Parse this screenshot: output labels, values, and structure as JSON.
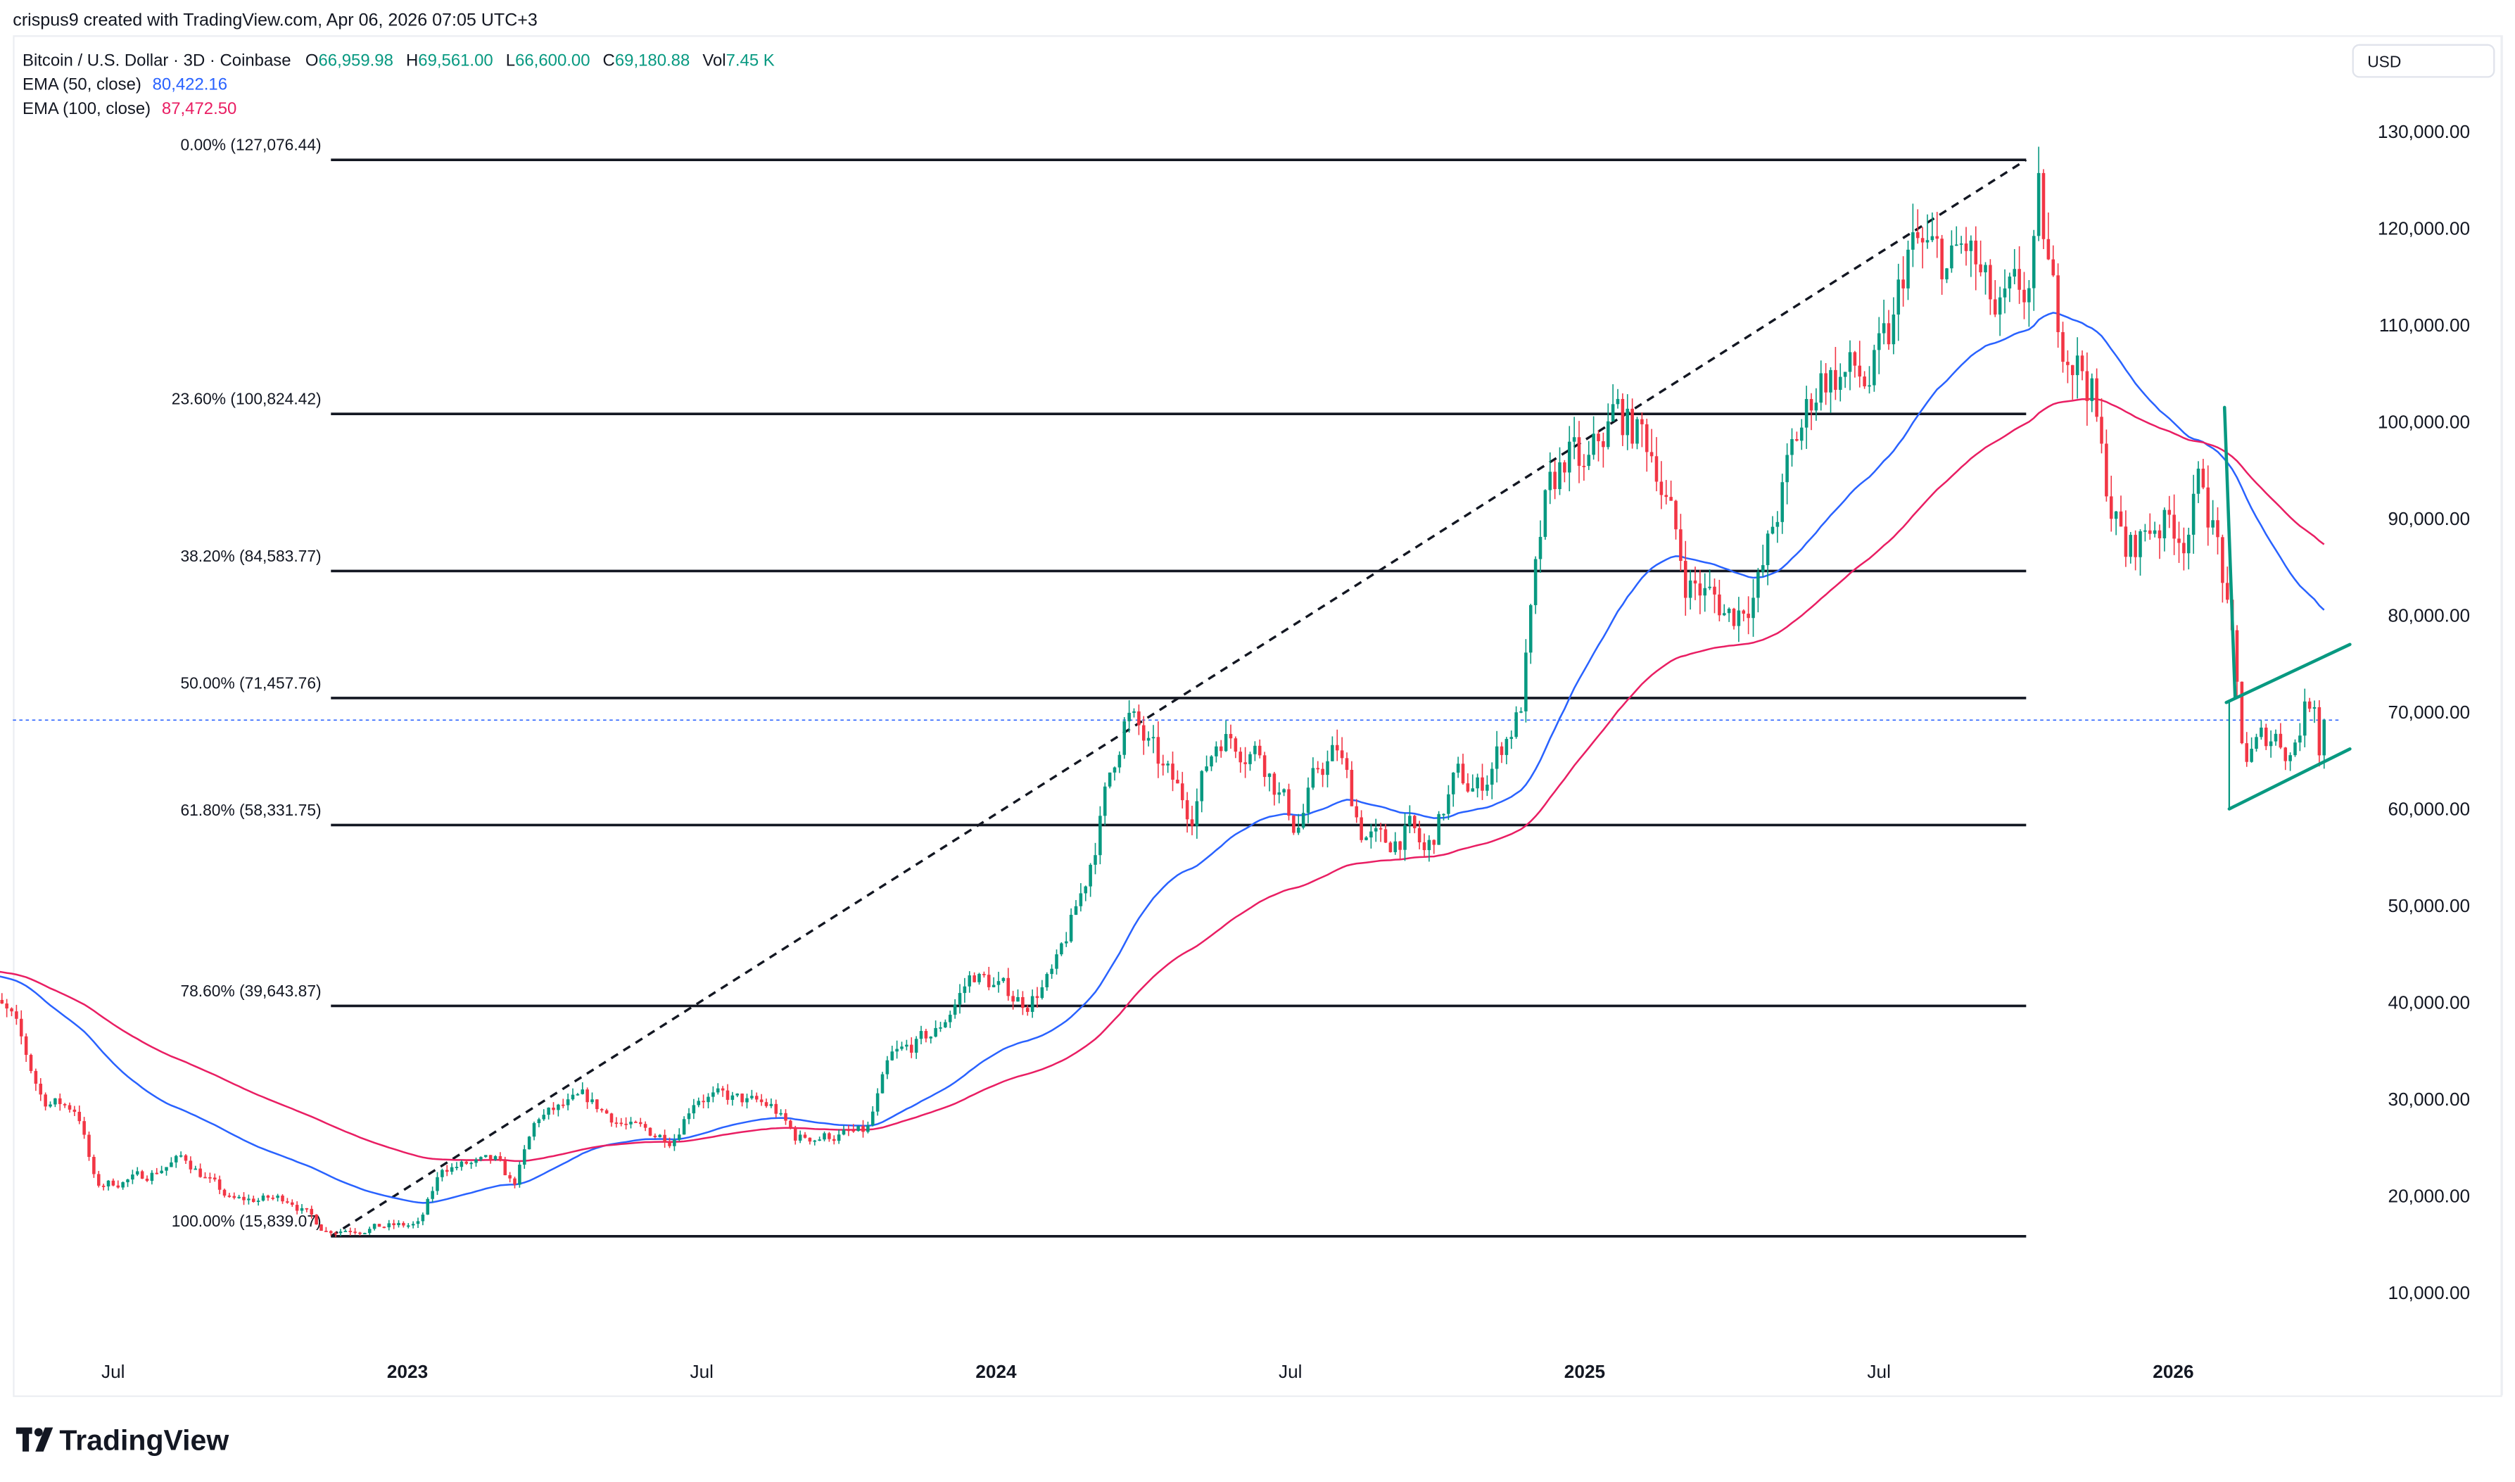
{
  "header": {
    "credit": "crispus9 created with TradingView.com, Apr 06, 2026 07:05 UTC+3",
    "symbol": "Bitcoin / U.S. Dollar · 3D · Coinbase",
    "open_label": "O",
    "open": "66,959.98",
    "high_label": "H",
    "high": "69,561.00",
    "low_label": "L",
    "low": "66,600.00",
    "close_label": "C",
    "close": "69,180.88",
    "vol_label": "Vol",
    "vol": "7.45 K",
    "ema50_label": "EMA (50, close)",
    "ema50_value": "80,422.16",
    "ema100_label": "EMA (100, close)",
    "ema100_value": "87,472.50"
  },
  "currency": "USD",
  "brand": "TradingView",
  "colors": {
    "up": "#089981",
    "down": "#F23645",
    "ema50": "#2962FF",
    "ema100": "#E91E63",
    "pattern": "#089981",
    "text": "#131722"
  },
  "chart_data": {
    "type": "candlestick",
    "title": "Bitcoin / U.S. Dollar · 3D · Coinbase",
    "interval_years": 0.008219,
    "ylim": [
      0,
      135000
    ],
    "xlim": [
      2022.27,
      2026.3
    ],
    "y_ticks": [
      "130,000.00",
      "120,000.00",
      "110,000.00",
      "100,000.00",
      "90,000.00",
      "80,000.00",
      "70,000.00",
      "60,000.00",
      "50,000.00",
      "40,000.00",
      "30,000.00",
      "20,000.00",
      "10,000.00"
    ],
    "y_tick_values": [
      130000,
      120000,
      110000,
      100000,
      90000,
      80000,
      70000,
      60000,
      50000,
      40000,
      30000,
      20000,
      10000
    ],
    "x_ticks": [
      {
        "label": "Jul",
        "t": 2022.5,
        "bold": false
      },
      {
        "label": "2023",
        "t": 2023.0,
        "bold": true
      },
      {
        "label": "Jul",
        "t": 2023.5,
        "bold": false
      },
      {
        "label": "2024",
        "t": 2024.0,
        "bold": true
      },
      {
        "label": "Jul",
        "t": 2024.5,
        "bold": false
      },
      {
        "label": "2025",
        "t": 2025.0,
        "bold": true
      },
      {
        "label": "Jul",
        "t": 2025.5,
        "bold": false
      },
      {
        "label": "2026",
        "t": 2026.0,
        "bold": true
      }
    ],
    "price_path": [
      [
        2022.27,
        42000
      ],
      [
        2022.33,
        38000
      ],
      [
        2022.38,
        30000
      ],
      [
        2022.44,
        29000
      ],
      [
        2022.47,
        21000
      ],
      [
        2022.55,
        22000
      ],
      [
        2022.62,
        24000
      ],
      [
        2022.7,
        19500
      ],
      [
        2022.8,
        19800
      ],
      [
        2022.86,
        16500
      ],
      [
        2022.95,
        16800
      ],
      [
        2023.02,
        17000
      ],
      [
        2023.06,
        23000
      ],
      [
        2023.15,
        23500
      ],
      [
        2023.18,
        21000
      ],
      [
        2023.22,
        28000
      ],
      [
        2023.3,
        30000
      ],
      [
        2023.38,
        27000
      ],
      [
        2023.45,
        26000
      ],
      [
        2023.49,
        30500
      ],
      [
        2023.55,
        30000
      ],
      [
        2023.62,
        29200
      ],
      [
        2023.66,
        26000
      ],
      [
        2023.78,
        26500
      ],
      [
        2023.82,
        34000
      ],
      [
        2023.9,
        37000
      ],
      [
        2023.96,
        43000
      ],
      [
        2024.05,
        40000
      ],
      [
        2024.1,
        43000
      ],
      [
        2024.15,
        52000
      ],
      [
        2024.2,
        65000
      ],
      [
        2024.22,
        70000
      ],
      [
        2024.28,
        64000
      ],
      [
        2024.33,
        60000
      ],
      [
        2024.38,
        68000
      ],
      [
        2024.45,
        66000
      ],
      [
        2024.51,
        58000
      ],
      [
        2024.55,
        64000
      ],
      [
        2024.58,
        66000
      ],
      [
        2024.62,
        58000
      ],
      [
        2024.66,
        56000
      ],
      [
        2024.7,
        58000
      ],
      [
        2024.73,
        55000
      ],
      [
        2024.78,
        63000
      ],
      [
        2024.82,
        62000
      ],
      [
        2024.87,
        68000
      ],
      [
        2024.89,
        70000
      ],
      [
        2024.93,
        90000
      ],
      [
        2024.97,
        97000
      ],
      [
        2025.0,
        94000
      ],
      [
        2025.05,
        101000
      ],
      [
        2025.12,
        97000
      ],
      [
        2025.17,
        84000
      ],
      [
        2025.25,
        80000
      ],
      [
        2025.3,
        84000
      ],
      [
        2025.35,
        96000
      ],
      [
        2025.4,
        105000
      ],
      [
        2025.45,
        105000
      ],
      [
        2025.48,
        104000
      ],
      [
        2025.52,
        108000
      ],
      [
        2025.55,
        118000
      ],
      [
        2025.62,
        116000
      ],
      [
        2025.65,
        118000
      ],
      [
        2025.7,
        110000
      ],
      [
        2025.76,
        114000
      ],
      [
        2025.77,
        122000
      ],
      [
        2025.8,
        111000
      ],
      [
        2025.86,
        104000
      ],
      [
        2025.88,
        95000
      ],
      [
        2025.92,
        86000
      ],
      [
        2025.97,
        90000
      ],
      [
        2026.02,
        89000
      ],
      [
        2026.05,
        94000
      ],
      [
        2026.08,
        86000
      ],
      [
        2026.1,
        76000
      ],
      [
        2026.12,
        65000
      ],
      [
        2026.17,
        68000
      ],
      [
        2026.2,
        66000
      ],
      [
        2026.22,
        70000
      ],
      [
        2026.24,
        72000
      ],
      [
        2026.25,
        66000
      ],
      [
        2026.26,
        69180.88
      ]
    ],
    "ema_seed": {
      "ema50": 43300,
      "ema100": 43500
    },
    "last_price": 69180.88,
    "fibonacci": {
      "from": {
        "t": 2022.87,
        "price": 15839.07
      },
      "to": {
        "t": 2025.75,
        "price": 127076.44
      },
      "levels": [
        {
          "label": "0.00% (127,076.44)",
          "price": 127076.44
        },
        {
          "label": "23.60% (100,824.42)",
          "price": 100824.42
        },
        {
          "label": "38.20% (84,583.77)",
          "price": 84583.77
        },
        {
          "label": "50.00% (71,457.76)",
          "price": 71457.76
        },
        {
          "label": "61.80% (58,331.75)",
          "price": 58331.75
        },
        {
          "label": "78.60% (39,643.87)",
          "price": 39643.87
        },
        {
          "label": "100.00% (15,839.07)",
          "price": 15839.07
        }
      ]
    },
    "pattern_lines": [
      {
        "name": "flagpole",
        "from": [
          2026.087,
          101500
        ],
        "to": [
          2026.105,
          71500
        ]
      },
      {
        "name": "upper-trendline",
        "from": [
          2026.09,
          71000
        ],
        "to": [
          2026.3,
          77000
        ]
      },
      {
        "name": "lower-connector",
        "from": [
          2026.095,
          71000
        ],
        "to": [
          2026.095,
          60000
        ]
      },
      {
        "name": "lower-trendline",
        "from": [
          2026.095,
          60000
        ],
        "to": [
          2026.3,
          66200
        ]
      }
    ],
    "series": [
      {
        "name": "EMA (50, close)",
        "period": 50,
        "color": "#2962FF"
      },
      {
        "name": "EMA (100, close)",
        "period": 100,
        "color": "#E91E63"
      }
    ]
  }
}
